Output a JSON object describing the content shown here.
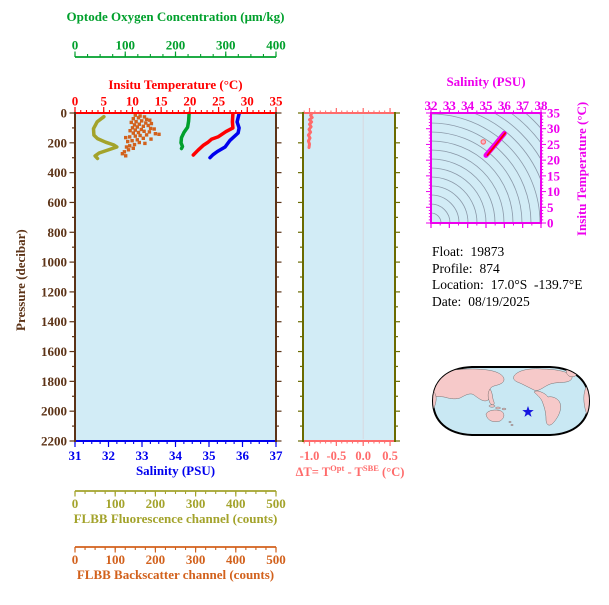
{
  "page_title": "Argo float profile figure",
  "colors": {
    "oxygen": "#00a02c",
    "temperature": "#ff0000",
    "salinity": "#0000ee",
    "pressure": "#5c3317",
    "fluorescence": "#a3a32b",
    "backscatter": "#d2611c",
    "delta_t": "#ff6b6b",
    "dt_frame": "#6b6b00",
    "ts": "#ee00ee",
    "plot_bg": "#d2ecf6",
    "contour": "#8a98a8",
    "zero_line": "#d8d8e0",
    "map_ocean": "#c9e8f3",
    "map_land": "#f6c9c9",
    "map_outline": "#000000",
    "map_star": "#1515e0"
  },
  "float_info": {
    "lines": [
      {
        "label": "Float:",
        "value": "19873"
      },
      {
        "label": "Profile:",
        "value": "874"
      },
      {
        "label": "Location:",
        "value": "17.0°S  -139.7°E"
      },
      {
        "label": "Date:",
        "value": "08/19/2025"
      }
    ]
  },
  "chart_data": {
    "profile_plot": {
      "type": "line",
      "background": "#d2ecf6",
      "pressure_axis": {
        "label": "Pressure (decibar)",
        "range": [
          0,
          2200
        ],
        "ticks": [
          0,
          200,
          400,
          600,
          800,
          1000,
          1200,
          1400,
          1600,
          1800,
          2000,
          2200
        ],
        "minor_step": 100
      },
      "x_axes": [
        {
          "id": "oxygen",
          "title": "Optode Oxygen Concentration (μm/kg)",
          "range": [
            0,
            400
          ],
          "ticks": [
            0,
            100,
            200,
            300,
            400
          ],
          "minor_step": 25,
          "position": "top-detached"
        },
        {
          "id": "temperature",
          "title": "Insitu Temperature (°C)",
          "range": [
            0,
            35
          ],
          "ticks": [
            0,
            5,
            10,
            15,
            20,
            25,
            30,
            35
          ],
          "minor_step": 1,
          "position": "top"
        },
        {
          "id": "salinity",
          "title": "Salinity (PSU)",
          "range": [
            31,
            37
          ],
          "ticks": [
            31,
            32,
            33,
            34,
            35,
            36,
            37
          ],
          "minor_step": 0.25,
          "position": "bottom"
        },
        {
          "id": "fluorescence",
          "title": "FLBB Fluorescence channel (counts)",
          "range": [
            0,
            500
          ],
          "ticks": [
            0,
            100,
            200,
            300,
            400,
            500
          ],
          "minor_step": 25,
          "position": "bottom-detached-1"
        },
        {
          "id": "backscatter",
          "title": "FLBB Backscatter channel (counts)",
          "range": [
            0,
            500
          ],
          "ticks": [
            0,
            100,
            200,
            300,
            400,
            500
          ],
          "minor_step": 25,
          "position": "bottom-detached-2"
        }
      ],
      "series": [
        {
          "name": "insitu-temperature",
          "axis": "temperature",
          "style": "line",
          "width": 3.5,
          "points": [
            [
              27.5,
              5
            ],
            [
              27.4,
              60
            ],
            [
              27.5,
              100
            ],
            [
              26.3,
              125
            ],
            [
              24.9,
              160
            ],
            [
              23.8,
              175
            ],
            [
              23.2,
              195
            ],
            [
              22.4,
              215
            ],
            [
              21.4,
              250
            ],
            [
              20.6,
              282
            ]
          ]
        },
        {
          "name": "salinity",
          "axis": "salinity",
          "style": "line",
          "width": 3.5,
          "points": [
            [
              35.9,
              5
            ],
            [
              35.84,
              60
            ],
            [
              35.9,
              100
            ],
            [
              35.87,
              134
            ],
            [
              35.62,
              185
            ],
            [
              35.48,
              228
            ],
            [
              35.25,
              258
            ],
            [
              35.12,
              280
            ],
            [
              35.03,
              300
            ]
          ]
        },
        {
          "name": "oxygen",
          "axis": "oxygen",
          "style": "line",
          "width": 3.5,
          "points": [
            [
              227,
              3
            ],
            [
              226,
              55
            ],
            [
              224,
              95
            ],
            [
              217,
              130
            ],
            [
              212,
              165
            ],
            [
              211,
              200
            ],
            [
              214,
              225
            ],
            [
              212,
              238
            ]
          ]
        },
        {
          "name": "fluorescence",
          "axis": "fluorescence",
          "style": "line",
          "width": 3.5,
          "points": [
            [
              72,
              25
            ],
            [
              55,
              60
            ],
            [
              46,
              105
            ],
            [
              47,
              148
            ],
            [
              56,
              172
            ],
            [
              76,
              196
            ],
            [
              96,
              214
            ],
            [
              104,
              228
            ],
            [
              82,
              248
            ],
            [
              60,
              268
            ],
            [
              50,
              288
            ],
            [
              56,
              305
            ]
          ]
        },
        {
          "name": "backscatter",
          "axis": "backscatter",
          "style": "scatter",
          "size": 3.4,
          "points": [
            [
              150,
              15
            ],
            [
              162,
              20
            ],
            [
              173,
              26
            ],
            [
              158,
              32
            ],
            [
              145,
              38
            ],
            [
              178,
              43
            ],
            [
              186,
              48
            ],
            [
              166,
              53
            ],
            [
              152,
              58
            ],
            [
              140,
              63
            ],
            [
              176,
              67
            ],
            [
              190,
              71
            ],
            [
              160,
              75
            ],
            [
              148,
              80
            ],
            [
              182,
              84
            ],
            [
              170,
              89
            ],
            [
              155,
              94
            ],
            [
              143,
              99
            ],
            [
              188,
              103
            ],
            [
              197,
              107
            ],
            [
              165,
              111
            ],
            [
              150,
              115
            ],
            [
              137,
              119
            ],
            [
              172,
              123
            ],
            [
              185,
              127
            ],
            [
              158,
              131
            ],
            [
              145,
              135
            ],
            [
              200,
              139
            ],
            [
              209,
              143
            ],
            [
              178,
              147
            ],
            [
              162,
              151
            ],
            [
              150,
              155
            ],
            [
              136,
              160
            ],
            [
              126,
              165
            ],
            [
              170,
              170
            ],
            [
              189,
              175
            ],
            [
              155,
              180
            ],
            [
              142,
              186
            ],
            [
              131,
              192
            ],
            [
              160,
              198
            ],
            [
              174,
              204
            ],
            [
              148,
              212
            ],
            [
              136,
              220
            ],
            [
              128,
              228
            ],
            [
              145,
              237
            ],
            [
              133,
              247
            ],
            [
              123,
              260
            ],
            [
              118,
              273
            ],
            [
              126,
              287
            ]
          ]
        }
      ]
    },
    "delta_t_plot": {
      "type": "line",
      "background": "#d2ecf6",
      "x_axis": {
        "title_p1": "ΔT= T",
        "title_sup1": "Opt",
        "title_p2": " - T",
        "title_sup2": "SBE",
        "title_p3": " (°C)",
        "tick_values": [
          -1.0,
          -0.5,
          0.0,
          0.5
        ],
        "labels": [
          "-1.0",
          "-0.5",
          "0.0",
          "0.5"
        ],
        "minor_step": 0.1,
        "range": [
          -1.12,
          0.59
        ]
      },
      "zero_line": 0.0,
      "series": [
        {
          "name": "delta-t",
          "style": "line",
          "width": 3,
          "points": [
            [
              -0.96,
              3
            ],
            [
              -0.98,
              16
            ],
            [
              -0.95,
              30
            ],
            [
              -1.0,
              45
            ],
            [
              -0.96,
              60
            ],
            [
              -1.0,
              76
            ],
            [
              -0.97,
              92
            ],
            [
              -1.01,
              110
            ],
            [
              -0.98,
              128
            ],
            [
              -1.02,
              148
            ],
            [
              -0.99,
              168
            ],
            [
              -1.02,
              188
            ],
            [
              -1.0,
              208
            ],
            [
              -1.01,
              232
            ]
          ]
        }
      ]
    },
    "ts_diagram": {
      "type": "scatter",
      "background": "#d2ecf6",
      "salinity_axis": {
        "title": "Salinity (PSU)",
        "range": [
          32,
          38
        ],
        "ticks": [
          32,
          33,
          34,
          35,
          36,
          37,
          38
        ],
        "minor_step": 0.5
      },
      "temperature_axis": {
        "title": "Insitu Temperature (°C)",
        "range": [
          0,
          35
        ],
        "ticks": [
          35,
          30,
          25,
          20,
          15,
          10,
          5,
          0
        ],
        "minor_step": 1
      },
      "density_contours": {
        "count": 17,
        "radius_start": 10,
        "radius_step": 9
      },
      "series": [
        {
          "name": "ts-track",
          "style": "line",
          "width": 5,
          "color_key": "ts",
          "points": [
            [
              35.0,
              21.5
            ],
            [
              35.55,
              25.3
            ],
            [
              36.0,
              28.5
            ]
          ]
        },
        {
          "name": "ts-track-overlay",
          "style": "line",
          "width": 1.8,
          "color_key": "temperature",
          "points": [
            [
              35.08,
              21.6
            ],
            [
              36.05,
              28.6
            ]
          ]
        },
        {
          "name": "ts-marker",
          "style": "marker",
          "color_key": "delta_t",
          "points": [
            [
              34.85,
              25.8
            ]
          ]
        }
      ]
    },
    "world_map": {
      "projection": "robinson-pacific-centered",
      "star": {
        "x": 98,
        "y": 48
      }
    }
  }
}
